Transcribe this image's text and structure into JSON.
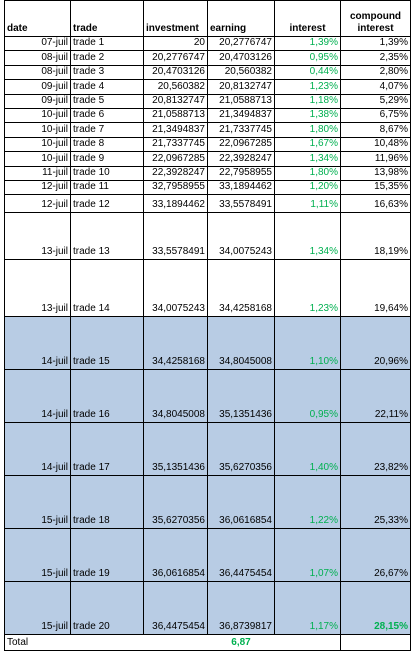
{
  "table": {
    "header": [
      "date",
      "trade",
      "investment",
      "earning",
      "interest",
      "compound interest"
    ],
    "rows": [
      [
        "07-juil",
        "trade 1",
        "20",
        "20,2776747",
        "1,39%",
        "1,39%"
      ],
      [
        "08-juil",
        "trade 2",
        "20,2776747",
        "20,4703126",
        "0,95%",
        "2,35%"
      ],
      [
        "08-juil",
        "trade 3",
        "20,4703126",
        "20,560382",
        "0,44%",
        "2,80%"
      ],
      [
        "09-juil",
        "trade 4",
        "20,560382",
        "20,8132747",
        "1,23%",
        "4,07%"
      ],
      [
        "09-juil",
        "trade 5",
        "20,8132747",
        "21,0588713",
        "1,18%",
        "5,29%"
      ],
      [
        "10-juil",
        "trade 6",
        "21,0588713",
        "21,3494837",
        "1,38%",
        "6,75%"
      ],
      [
        "10-juil",
        "trade 7",
        "21,3494837",
        "21,7337745",
        "1,80%",
        "8,67%"
      ],
      [
        "10-juil",
        "trade 8",
        "21,7337745",
        "22,0967285",
        "1,67%",
        "10,48%"
      ],
      [
        "10-juil",
        "trade 9",
        "22,0967285",
        "22,3928247",
        "1,34%",
        "11,96%"
      ],
      [
        "11-juil",
        "trade 10",
        "22,3928247",
        "22,7958955",
        "1,80%",
        "13,98%"
      ],
      [
        "12-juil",
        "trade 11",
        "32,7958955",
        "33,1894462",
        "1,20%",
        "15,35%"
      ],
      [
        "12-juil",
        "trade 12",
        "33,1894462",
        "33,5578491",
        "1,11%",
        "16,63%"
      ],
      [
        "13-juil",
        "trade 13",
        "33,5578491",
        "34,0075243",
        "1,34%",
        "18,19%"
      ],
      [
        "13-juil",
        "trade 14",
        "34,0075243",
        "34,4258168",
        "1,23%",
        "19,64%"
      ],
      [
        "14-juil",
        "trade 15",
        "34,4258168",
        "34,8045008",
        "1,10%",
        "20,96%"
      ],
      [
        "14-juil",
        "trade 16",
        "34,8045008",
        "35,1351436",
        "0,95%",
        "22,11%"
      ],
      [
        "14-juil",
        "trade 17",
        "35,1351436",
        "35,6270356",
        "1,40%",
        "23,82%"
      ],
      [
        "15-juil",
        "trade 18",
        "35,6270356",
        "36,0616854",
        "1,22%",
        "25,33%"
      ],
      [
        "15-juil",
        "trade 19",
        "36,0616854",
        "36,4475454",
        "1,07%",
        "26,67%"
      ],
      [
        "15-juil",
        "trade 20",
        "36,4475454",
        "36,8739817",
        "1,17%",
        "28,15%"
      ]
    ],
    "footer": {
      "label": "Total",
      "total": "6,87"
    }
  }
}
